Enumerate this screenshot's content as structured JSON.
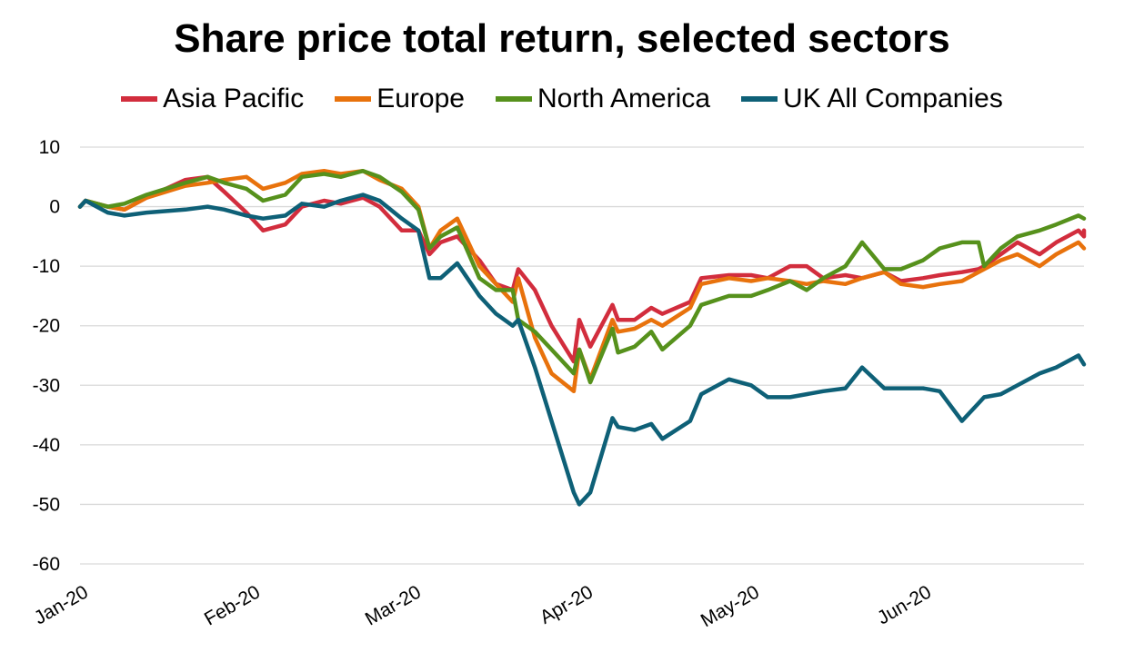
{
  "chart_data": {
    "type": "line",
    "title": "Share price total return, selected sectors",
    "xlabel": "",
    "ylabel": "",
    "ylim": [
      -60,
      10
    ],
    "yticks": [
      10,
      0,
      -10,
      -20,
      -30,
      -40,
      -50,
      -60
    ],
    "xlim": [
      "2020-01-01",
      "2020-06-30"
    ],
    "xticks": [
      {
        "date": "2020-01-01",
        "label": "Jan-20"
      },
      {
        "date": "2020-02-01",
        "label": "Feb-20"
      },
      {
        "date": "2020-03-01",
        "label": "Mar-20"
      },
      {
        "date": "2020-04-01",
        "label": "Apr-20"
      },
      {
        "date": "2020-05-01",
        "label": "May-20"
      },
      {
        "date": "2020-06-01",
        "label": "Jun-20"
      }
    ],
    "grid": "horizontal",
    "legend_position": "top-center",
    "series": [
      {
        "name": "Asia Pacific",
        "color": "#d22d3d",
        "points": [
          [
            "2020-01-01",
            0
          ],
          [
            "2020-01-02",
            1
          ],
          [
            "2020-01-06",
            0
          ],
          [
            "2020-01-09",
            -0.5
          ],
          [
            "2020-01-13",
            1.5
          ],
          [
            "2020-01-20",
            4.5
          ],
          [
            "2020-01-24",
            5
          ],
          [
            "2020-01-27",
            2.5
          ],
          [
            "2020-01-31",
            -1
          ],
          [
            "2020-02-03",
            -4
          ],
          [
            "2020-02-07",
            -3
          ],
          [
            "2020-02-10",
            0
          ],
          [
            "2020-02-14",
            1
          ],
          [
            "2020-02-17",
            0.5
          ],
          [
            "2020-02-21",
            1.5
          ],
          [
            "2020-02-24",
            0
          ],
          [
            "2020-02-28",
            -4
          ],
          [
            "2020-03-02",
            -4
          ],
          [
            "2020-03-04",
            -8
          ],
          [
            "2020-03-06",
            -6
          ],
          [
            "2020-03-09",
            -5
          ],
          [
            "2020-03-13",
            -9
          ],
          [
            "2020-03-16",
            -13
          ],
          [
            "2020-03-19",
            -14
          ],
          [
            "2020-03-20",
            -10.5
          ],
          [
            "2020-03-23",
            -14
          ],
          [
            "2020-03-26",
            -20
          ],
          [
            "2020-03-30",
            -26
          ],
          [
            "2020-03-31",
            -19
          ],
          [
            "2020-04-02",
            -23.5
          ],
          [
            "2020-04-06",
            -16.5
          ],
          [
            "2020-04-07",
            -19
          ],
          [
            "2020-04-10",
            -19
          ],
          [
            "2020-04-13",
            -17
          ],
          [
            "2020-04-15",
            -18
          ],
          [
            "2020-04-20",
            -16
          ],
          [
            "2020-04-22",
            -12
          ],
          [
            "2020-04-27",
            -11.5
          ],
          [
            "2020-05-01",
            -11.5
          ],
          [
            "2020-05-04",
            -12
          ],
          [
            "2020-05-08",
            -10
          ],
          [
            "2020-05-11",
            -10
          ],
          [
            "2020-05-14",
            -12
          ],
          [
            "2020-05-18",
            -11.5
          ],
          [
            "2020-05-21",
            -12
          ],
          [
            "2020-05-25",
            -11
          ],
          [
            "2020-05-28",
            -12.5
          ],
          [
            "2020-06-01",
            -12
          ],
          [
            "2020-06-04",
            -11.5
          ],
          [
            "2020-06-08",
            -11
          ],
          [
            "2020-06-11",
            -10.5
          ],
          [
            "2020-06-12",
            -10
          ],
          [
            "2020-06-15",
            -8
          ],
          [
            "2020-06-18",
            -6
          ],
          [
            "2020-06-22",
            -8
          ],
          [
            "2020-06-25",
            -6
          ],
          [
            "2020-06-29",
            -4
          ],
          [
            "2020-06-30",
            -5
          ],
          [
            "2020-06-30",
            -4
          ]
        ]
      },
      {
        "name": "Europe",
        "color": "#e8720c",
        "points": [
          [
            "2020-01-01",
            0
          ],
          [
            "2020-01-02",
            1
          ],
          [
            "2020-01-06",
            0
          ],
          [
            "2020-01-09",
            -0.5
          ],
          [
            "2020-01-13",
            1.5
          ],
          [
            "2020-01-20",
            3.5
          ],
          [
            "2020-01-24",
            4
          ],
          [
            "2020-01-27",
            4.5
          ],
          [
            "2020-01-31",
            5
          ],
          [
            "2020-02-03",
            3
          ],
          [
            "2020-02-07",
            4
          ],
          [
            "2020-02-10",
            5.5
          ],
          [
            "2020-02-14",
            6
          ],
          [
            "2020-02-17",
            5.5
          ],
          [
            "2020-02-21",
            6
          ],
          [
            "2020-02-24",
            4.5
          ],
          [
            "2020-02-28",
            3
          ],
          [
            "2020-03-02",
            0
          ],
          [
            "2020-03-04",
            -7
          ],
          [
            "2020-03-06",
            -4
          ],
          [
            "2020-03-09",
            -2
          ],
          [
            "2020-03-13",
            -10
          ],
          [
            "2020-03-16",
            -13
          ],
          [
            "2020-03-19",
            -16
          ],
          [
            "2020-03-20",
            -12
          ],
          [
            "2020-03-23",
            -22
          ],
          [
            "2020-03-26",
            -28
          ],
          [
            "2020-03-30",
            -31
          ],
          [
            "2020-03-31",
            -24
          ],
          [
            "2020-04-02",
            -29
          ],
          [
            "2020-04-06",
            -19
          ],
          [
            "2020-04-07",
            -21
          ],
          [
            "2020-04-10",
            -20.5
          ],
          [
            "2020-04-13",
            -19
          ],
          [
            "2020-04-15",
            -20
          ],
          [
            "2020-04-20",
            -17
          ],
          [
            "2020-04-22",
            -13
          ],
          [
            "2020-04-27",
            -12
          ],
          [
            "2020-05-01",
            -12.5
          ],
          [
            "2020-05-04",
            -12
          ],
          [
            "2020-05-08",
            -12.5
          ],
          [
            "2020-05-11",
            -13
          ],
          [
            "2020-05-14",
            -12.5
          ],
          [
            "2020-05-18",
            -13
          ],
          [
            "2020-05-21",
            -12
          ],
          [
            "2020-05-25",
            -11
          ],
          [
            "2020-05-28",
            -13
          ],
          [
            "2020-06-01",
            -13.5
          ],
          [
            "2020-06-04",
            -13
          ],
          [
            "2020-06-08",
            -12.5
          ],
          [
            "2020-06-11",
            -11
          ],
          [
            "2020-06-12",
            -10.5
          ],
          [
            "2020-06-15",
            -9
          ],
          [
            "2020-06-18",
            -8
          ],
          [
            "2020-06-22",
            -10
          ],
          [
            "2020-06-25",
            -8
          ],
          [
            "2020-06-29",
            -6
          ],
          [
            "2020-06-30",
            -7
          ]
        ]
      },
      {
        "name": "North America",
        "color": "#56911c",
        "points": [
          [
            "2020-01-01",
            0
          ],
          [
            "2020-01-02",
            1
          ],
          [
            "2020-01-06",
            0
          ],
          [
            "2020-01-09",
            0.5
          ],
          [
            "2020-01-13",
            2
          ],
          [
            "2020-01-20",
            4
          ],
          [
            "2020-01-24",
            5
          ],
          [
            "2020-01-27",
            4
          ],
          [
            "2020-01-31",
            3
          ],
          [
            "2020-02-03",
            1
          ],
          [
            "2020-02-07",
            2
          ],
          [
            "2020-02-10",
            5
          ],
          [
            "2020-02-14",
            5.5
          ],
          [
            "2020-02-17",
            5
          ],
          [
            "2020-02-21",
            6
          ],
          [
            "2020-02-24",
            5
          ],
          [
            "2020-02-28",
            2.5
          ],
          [
            "2020-03-02",
            -0.5
          ],
          [
            "2020-03-04",
            -7
          ],
          [
            "2020-03-06",
            -5
          ],
          [
            "2020-03-09",
            -3.5
          ],
          [
            "2020-03-13",
            -12
          ],
          [
            "2020-03-16",
            -14
          ],
          [
            "2020-03-19",
            -14
          ],
          [
            "2020-03-20",
            -19
          ],
          [
            "2020-03-23",
            -21
          ],
          [
            "2020-03-26",
            -24
          ],
          [
            "2020-03-30",
            -28
          ],
          [
            "2020-03-31",
            -24
          ],
          [
            "2020-04-02",
            -29.5
          ],
          [
            "2020-04-06",
            -20.5
          ],
          [
            "2020-04-07",
            -24.5
          ],
          [
            "2020-04-10",
            -23.5
          ],
          [
            "2020-04-13",
            -21
          ],
          [
            "2020-04-15",
            -24
          ],
          [
            "2020-04-20",
            -20
          ],
          [
            "2020-04-22",
            -16.5
          ],
          [
            "2020-04-27",
            -15
          ],
          [
            "2020-05-01",
            -15
          ],
          [
            "2020-05-04",
            -14
          ],
          [
            "2020-05-08",
            -12.5
          ],
          [
            "2020-05-11",
            -14
          ],
          [
            "2020-05-14",
            -12
          ],
          [
            "2020-05-18",
            -10
          ],
          [
            "2020-05-21",
            -6
          ],
          [
            "2020-05-25",
            -10.5
          ],
          [
            "2020-05-28",
            -10.5
          ],
          [
            "2020-06-01",
            -9
          ],
          [
            "2020-06-04",
            -7
          ],
          [
            "2020-06-08",
            -6
          ],
          [
            "2020-06-11",
            -6
          ],
          [
            "2020-06-12",
            -10
          ],
          [
            "2020-06-15",
            -7
          ],
          [
            "2020-06-18",
            -5
          ],
          [
            "2020-06-22",
            -4
          ],
          [
            "2020-06-25",
            -3
          ],
          [
            "2020-06-29",
            -1.5
          ],
          [
            "2020-06-30",
            -2
          ]
        ]
      },
      {
        "name": "UK All Companies",
        "color": "#0e6077",
        "points": [
          [
            "2020-01-01",
            0
          ],
          [
            "2020-01-02",
            1
          ],
          [
            "2020-01-06",
            -1
          ],
          [
            "2020-01-09",
            -1.5
          ],
          [
            "2020-01-13",
            -1
          ],
          [
            "2020-01-20",
            -0.5
          ],
          [
            "2020-01-24",
            0
          ],
          [
            "2020-01-27",
            -0.5
          ],
          [
            "2020-01-31",
            -1.5
          ],
          [
            "2020-02-03",
            -2
          ],
          [
            "2020-02-07",
            -1.5
          ],
          [
            "2020-02-10",
            0.5
          ],
          [
            "2020-02-14",
            0
          ],
          [
            "2020-02-17",
            1
          ],
          [
            "2020-02-21",
            2
          ],
          [
            "2020-02-24",
            1
          ],
          [
            "2020-02-28",
            -2
          ],
          [
            "2020-03-02",
            -4
          ],
          [
            "2020-03-04",
            -12
          ],
          [
            "2020-03-06",
            -12
          ],
          [
            "2020-03-09",
            -9.5
          ],
          [
            "2020-03-13",
            -15
          ],
          [
            "2020-03-16",
            -18
          ],
          [
            "2020-03-19",
            -20
          ],
          [
            "2020-03-20",
            -19
          ],
          [
            "2020-03-23",
            -27
          ],
          [
            "2020-03-26",
            -36
          ],
          [
            "2020-03-30",
            -48
          ],
          [
            "2020-03-31",
            -50
          ],
          [
            "2020-04-02",
            -48
          ],
          [
            "2020-04-06",
            -35.5
          ],
          [
            "2020-04-07",
            -37
          ],
          [
            "2020-04-10",
            -37.5
          ],
          [
            "2020-04-13",
            -36.5
          ],
          [
            "2020-04-15",
            -39
          ],
          [
            "2020-04-20",
            -36
          ],
          [
            "2020-04-22",
            -31.5
          ],
          [
            "2020-04-27",
            -29
          ],
          [
            "2020-05-01",
            -30
          ],
          [
            "2020-05-04",
            -32
          ],
          [
            "2020-05-08",
            -32
          ],
          [
            "2020-05-11",
            -31.5
          ],
          [
            "2020-05-14",
            -31
          ],
          [
            "2020-05-18",
            -30.5
          ],
          [
            "2020-05-21",
            -27
          ],
          [
            "2020-05-25",
            -30.5
          ],
          [
            "2020-05-28",
            -30.5
          ],
          [
            "2020-06-01",
            -30.5
          ],
          [
            "2020-06-04",
            -31
          ],
          [
            "2020-06-08",
            -36
          ],
          [
            "2020-06-11",
            -33
          ],
          [
            "2020-06-12",
            -32
          ],
          [
            "2020-06-15",
            -31.5
          ],
          [
            "2020-06-18",
            -30
          ],
          [
            "2020-06-22",
            -28
          ],
          [
            "2020-06-25",
            -27
          ],
          [
            "2020-06-29",
            -25
          ],
          [
            "2020-06-30",
            -26.5
          ]
        ]
      }
    ]
  }
}
